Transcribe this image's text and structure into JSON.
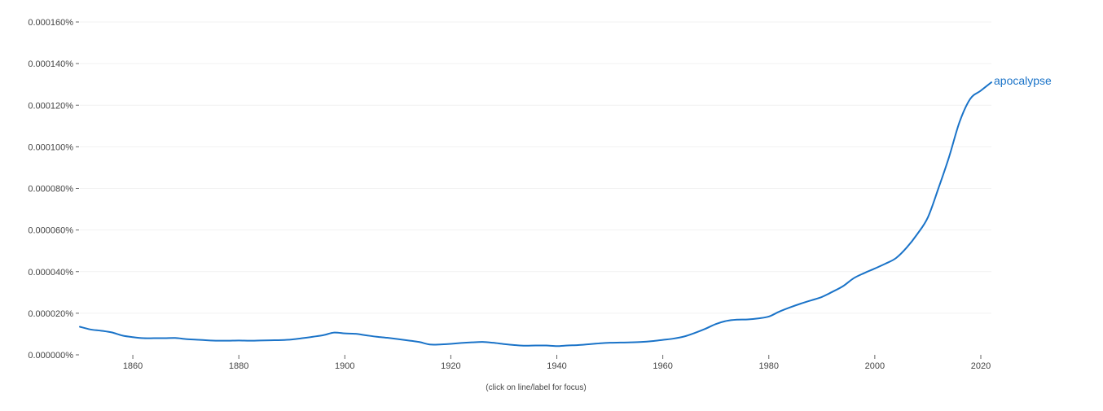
{
  "chart_data": {
    "type": "line",
    "title": "",
    "xlabel": "",
    "ylabel": "",
    "xlim": [
      1850,
      2022
    ],
    "ylim": [
      0,
      0.00016
    ],
    "grid": true,
    "y_ticks": [
      {
        "value": 0,
        "label": "0.000000%"
      },
      {
        "value": 2e-05,
        "label": "0.000020%"
      },
      {
        "value": 4e-05,
        "label": "0.000040%"
      },
      {
        "value": 6e-05,
        "label": "0.000060%"
      },
      {
        "value": 8e-05,
        "label": "0.000080%"
      },
      {
        "value": 0.0001,
        "label": "0.000100%"
      },
      {
        "value": 0.00012,
        "label": "0.000120%"
      },
      {
        "value": 0.00014,
        "label": "0.000140%"
      },
      {
        "value": 0.00016,
        "label": "0.000160%"
      }
    ],
    "x_ticks": [
      {
        "value": 1860,
        "label": "1860"
      },
      {
        "value": 1880,
        "label": "1880"
      },
      {
        "value": 1900,
        "label": "1900"
      },
      {
        "value": 1920,
        "label": "1920"
      },
      {
        "value": 1940,
        "label": "1940"
      },
      {
        "value": 1960,
        "label": "1960"
      },
      {
        "value": 1980,
        "label": "1980"
      },
      {
        "value": 2000,
        "label": "2000"
      },
      {
        "value": 2020,
        "label": "2020"
      }
    ],
    "series": [
      {
        "name": "apocalypse",
        "color": "#1a73c8",
        "x": [
          1850,
          1852,
          1854,
          1856,
          1858,
          1860,
          1862,
          1864,
          1866,
          1868,
          1870,
          1872,
          1874,
          1876,
          1878,
          1880,
          1882,
          1884,
          1886,
          1888,
          1890,
          1892,
          1894,
          1896,
          1898,
          1900,
          1902,
          1904,
          1906,
          1908,
          1910,
          1912,
          1914,
          1916,
          1918,
          1920,
          1922,
          1924,
          1926,
          1928,
          1930,
          1932,
          1934,
          1936,
          1938,
          1940,
          1942,
          1944,
          1946,
          1948,
          1950,
          1952,
          1954,
          1956,
          1958,
          1960,
          1962,
          1964,
          1966,
          1968,
          1970,
          1972,
          1974,
          1976,
          1978,
          1980,
          1982,
          1984,
          1986,
          1988,
          1990,
          1992,
          1994,
          1996,
          1998,
          2000,
          2002,
          2004,
          2006,
          2008,
          2010,
          2012,
          2014,
          2016,
          2018,
          2020,
          2022
        ],
        "y": [
          1.35e-05,
          1.22e-05,
          1.16e-05,
          1.08e-05,
          9.3e-06,
          8.5e-06,
          8e-06,
          8e-06,
          8e-06,
          8.1e-06,
          7.6e-06,
          7.3e-06,
          7e-06,
          6.8e-06,
          6.8e-06,
          6.9e-06,
          6.8e-06,
          6.9e-06,
          7e-06,
          7.1e-06,
          7.4e-06,
          8e-06,
          8.7e-06,
          9.5e-06,
          1.07e-05,
          1.03e-05,
          1.01e-05,
          9.4e-06,
          8.7e-06,
          8.2e-06,
          7.6e-06,
          6.9e-06,
          6.2e-06,
          5e-06,
          5e-06,
          5.3e-06,
          5.7e-06,
          6e-06,
          6.2e-06,
          5.8e-06,
          5.2e-06,
          4.7e-06,
          4.4e-06,
          4.5e-06,
          4.5e-06,
          4.2e-06,
          4.5e-06,
          4.7e-06,
          5.1e-06,
          5.5e-06,
          5.8e-06,
          5.9e-06,
          6e-06,
          6.2e-06,
          6.6e-06,
          7.2e-06,
          7.8e-06,
          8.8e-06,
          1.05e-05,
          1.25e-05,
          1.48e-05,
          1.63e-05,
          1.69e-05,
          1.7e-05,
          1.75e-05,
          1.84e-05,
          2.08e-05,
          2.28e-05,
          2.46e-05,
          2.62e-05,
          2.78e-05,
          3.03e-05,
          3.3e-05,
          3.68e-05,
          3.93e-05,
          4.15e-05,
          4.38e-05,
          4.65e-05,
          5.15e-05,
          5.8e-05,
          6.6e-05,
          8e-05,
          9.5e-05,
          0.000112,
          0.000123,
          0.000127,
          0.000131
        ]
      }
    ],
    "legend": "line-end label"
  },
  "footer": {
    "hint": "(click on line/label for focus)"
  }
}
